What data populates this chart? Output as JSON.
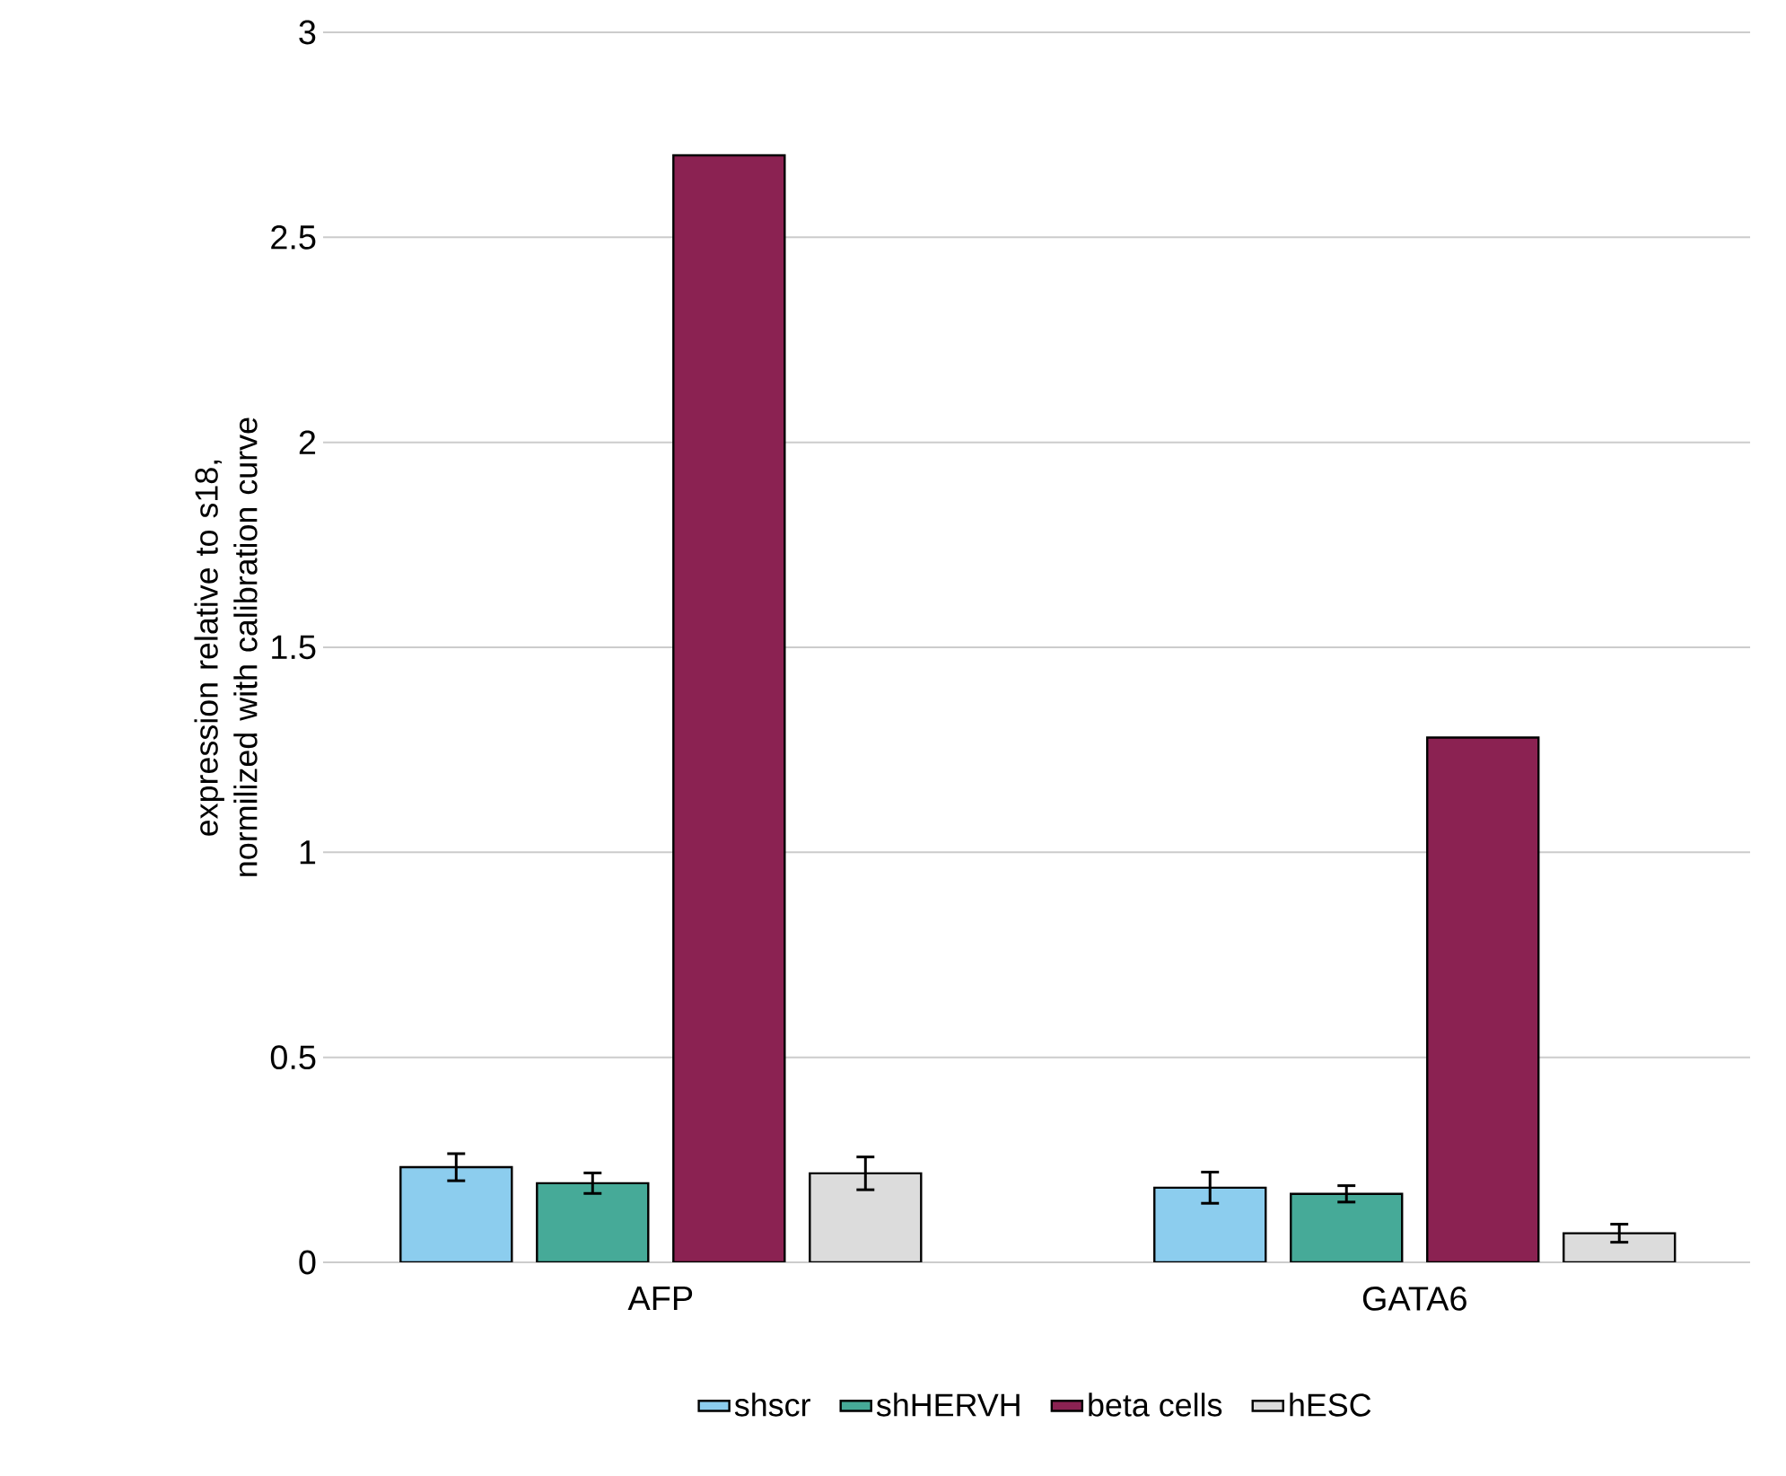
{
  "chart_data": {
    "type": "bar",
    "ylabel": "expression relative to s18, normilized with calibration curve",
    "categories": [
      "AFP",
      "GATA6"
    ],
    "series": [
      {
        "name": "shscr",
        "color": "#8ccdee",
        "values": [
          0.232,
          0.182
        ],
        "errors": [
          0.033,
          0.038
        ]
      },
      {
        "name": "shHERVH",
        "color": "#46aa98",
        "values": [
          0.193,
          0.167
        ],
        "errors": [
          0.025,
          0.02
        ]
      },
      {
        "name": "beta cells",
        "color": "#8b2252",
        "values": [
          2.7,
          1.28
        ]
      },
      {
        "name": "hESC",
        "color": "#dcdcdc",
        "values": [
          0.217,
          0.071
        ],
        "errors": [
          0.04,
          0.022
        ]
      }
    ],
    "ylim": [
      0,
      3
    ],
    "yticks": [
      0,
      0.5,
      1,
      1.5,
      2,
      2.5,
      3
    ],
    "grid": "y",
    "legend": "bottom"
  }
}
